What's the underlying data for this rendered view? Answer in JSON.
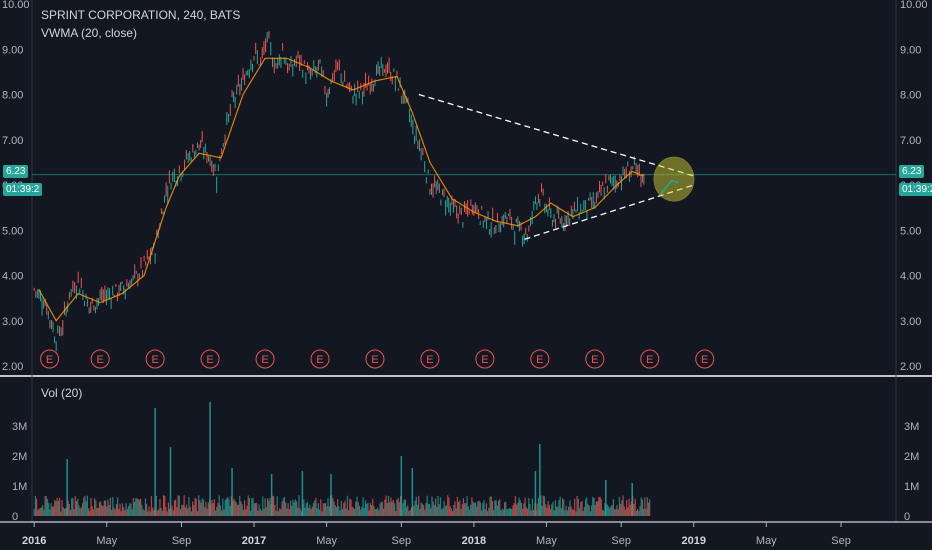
{
  "header": {
    "symbol_line": "SPRINT CORPORATION, 240, BATS",
    "indicator": "VWMA (20, close)",
    "volume_label": "Vol (20)"
  },
  "price_badge": {
    "value": "6.23",
    "countdown": "01:39:2"
  },
  "colors": {
    "background": "#131722",
    "up": "#26a69a",
    "down": "#ef5350",
    "vwma": "#ff9800",
    "event": "#ef5350",
    "highlight": "#c8c832"
  },
  "chart_data": [
    {
      "type": "line",
      "title": "SPRINT CORPORATION, 240, BATS",
      "y_ticks": [
        "10.00",
        "9.00",
        "8.00",
        "7.00",
        "6.00",
        "5.00",
        "4.00",
        "3.00",
        "2.00"
      ],
      "ylim": [
        2.0,
        10.0
      ],
      "x_ticks": [
        "2016",
        "May",
        "Sep",
        "2017",
        "May",
        "Sep",
        "2018",
        "May",
        "Sep",
        "2019",
        "May",
        "Sep"
      ],
      "x_tick_times": [
        2016.0,
        2016.33,
        2016.67,
        2017.0,
        2017.33,
        2017.67,
        2018.0,
        2018.33,
        2018.67,
        2019.0,
        2019.33,
        2019.67
      ],
      "xlim": [
        2015.99,
        2019.92
      ],
      "series": [
        {
          "x": [
            2016.0,
            2016.05,
            2016.1,
            2016.13,
            2016.16,
            2016.2,
            2016.25,
            2016.3,
            2016.35,
            2016.4,
            2016.45,
            2016.5,
            2016.55,
            2016.6,
            2016.63,
            2016.66,
            2016.7,
            2016.75,
            2016.8,
            2016.83,
            2016.86,
            2016.9,
            2016.95,
            2017.0,
            2017.03,
            2017.06,
            2017.1,
            2017.13,
            2017.16,
            2017.2,
            2017.25,
            2017.3,
            2017.33,
            2017.35,
            2017.38,
            2017.42,
            2017.45,
            2017.5,
            2017.55,
            2017.6,
            2017.65,
            2017.7,
            2017.73,
            2017.76,
            2017.8,
            2017.85,
            2017.9,
            2017.95,
            2018.0,
            2018.05,
            2018.1,
            2018.15,
            2018.2,
            2018.25,
            2018.28,
            2018.3,
            2018.33,
            2018.35,
            2018.4,
            2018.45,
            2018.5,
            2018.55,
            2018.6,
            2018.65,
            2018.7,
            2018.73,
            2018.76,
            2018.78
          ],
          "values": [
            3.7,
            3.4,
            2.6,
            2.9,
            3.6,
            3.9,
            3.3,
            3.5,
            3.6,
            3.7,
            3.9,
            4.2,
            4.6,
            5.9,
            6.2,
            6.3,
            6.6,
            6.9,
            6.6,
            6.2,
            7.0,
            7.8,
            8.3,
            8.9,
            8.7,
            9.2,
            8.6,
            9.0,
            8.5,
            8.8,
            8.4,
            8.6,
            8.0,
            8.3,
            8.6,
            8.2,
            8.0,
            8.1,
            8.4,
            8.6,
            8.3,
            7.7,
            7.1,
            6.8,
            6.0,
            5.8,
            5.5,
            5.3,
            5.6,
            5.2,
            5.1,
            5.3,
            5.0,
            4.95,
            5.7,
            5.8,
            5.5,
            5.3,
            5.2,
            5.4,
            5.5,
            5.6,
            6.0,
            6.1,
            6.3,
            6.4,
            6.05,
            6.23
          ]
        },
        {
          "name": "VWMA (20, close)",
          "x": [
            2016.02,
            2016.1,
            2016.15,
            2016.2,
            2016.3,
            2016.4,
            2016.5,
            2016.6,
            2016.66,
            2016.75,
            2016.85,
            2016.95,
            2017.05,
            2017.15,
            2017.25,
            2017.35,
            2017.45,
            2017.55,
            2017.65,
            2017.72,
            2017.8,
            2017.9,
            2018.0,
            2018.1,
            2018.2,
            2018.28,
            2018.35,
            2018.45,
            2018.55,
            2018.65,
            2018.72,
            2018.77
          ],
          "values": [
            3.7,
            3.0,
            3.3,
            3.6,
            3.4,
            3.6,
            4.0,
            5.5,
            6.2,
            6.7,
            6.6,
            8.0,
            8.8,
            8.8,
            8.6,
            8.3,
            8.1,
            8.3,
            8.4,
            7.6,
            6.5,
            5.7,
            5.4,
            5.2,
            5.1,
            5.3,
            5.6,
            5.3,
            5.5,
            6.0,
            6.3,
            6.2
          ]
        }
      ]
    },
    {
      "type": "bar",
      "title": "Vol (20)",
      "y_ticks": [
        "0",
        "1M",
        "2M",
        "3M"
      ],
      "ylim": [
        0,
        3.6
      ],
      "spikes": [
        {
          "x": 2016.15,
          "value": 1.9
        },
        {
          "x": 2016.55,
          "value": 3.6
        },
        {
          "x": 2016.62,
          "value": 2.3
        },
        {
          "x": 2016.8,
          "value": 3.8
        },
        {
          "x": 2016.9,
          "value": 1.6
        },
        {
          "x": 2017.08,
          "value": 1.4
        },
        {
          "x": 2017.22,
          "value": 1.5
        },
        {
          "x": 2017.35,
          "value": 1.4
        },
        {
          "x": 2017.67,
          "value": 2.0
        },
        {
          "x": 2017.72,
          "value": 1.6
        },
        {
          "x": 2018.3,
          "value": 2.4
        },
        {
          "x": 2018.28,
          "value": 1.5
        },
        {
          "x": 2018.6,
          "value": 1.2
        },
        {
          "x": 2018.72,
          "value": 1.1
        }
      ]
    }
  ],
  "events": {
    "label": "E",
    "x": [
      2016.07,
      2016.3,
      2016.55,
      2016.8,
      2017.05,
      2017.3,
      2017.55,
      2017.8,
      2018.05,
      2018.3,
      2018.55,
      2018.8,
      2019.05
    ]
  },
  "annotations": {
    "resistance": {
      "x1": 2017.75,
      "y1": 8.0,
      "x2": 2019.0,
      "y2": 6.2
    },
    "support": {
      "x1": 2018.23,
      "y1": 4.8,
      "x2": 2019.0,
      "y2": 6.0
    }
  }
}
